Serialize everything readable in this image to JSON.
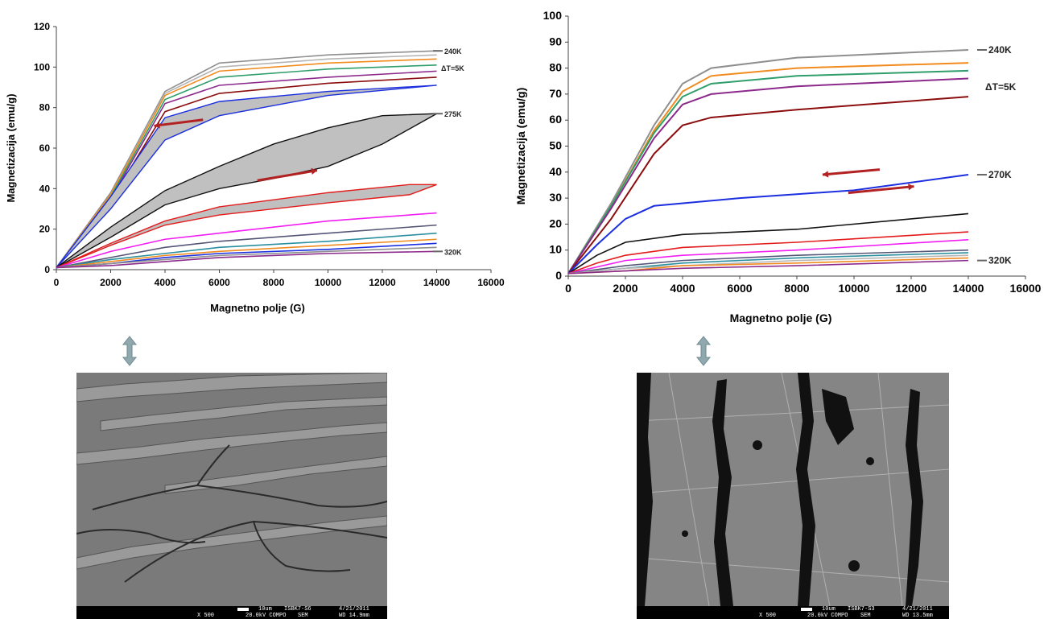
{
  "colors": {
    "gray": "#8f8f8f",
    "lightgray": "#b5b5b5",
    "orange": "#f28b1e",
    "green": "#2e9e6a",
    "purple": "#8c2a8c",
    "darkred": "#8b0d0d",
    "blue": "#1c2fe0",
    "black": "#111111",
    "red": "#e31b1b",
    "magenta": "#f21df2",
    "slate": "#555577",
    "teal": "#2a8f9f",
    "arrow": "#b22222",
    "dblarrow": "#8fa9ae"
  },
  "chart_data": [
    {
      "type": "line",
      "xlabel": "Magnetno polje (G)",
      "ylabel": "Magnetizacija (emu/g)",
      "xlim": [
        0,
        16000
      ],
      "ylim": [
        0,
        120
      ],
      "xticks": [
        "0",
        "2000",
        "4000",
        "6000",
        "8000",
        "10000",
        "12000",
        "14000",
        "16000"
      ],
      "yticks": [
        "0",
        "20",
        "40",
        "60",
        "80",
        "100",
        "120"
      ],
      "annotations": {
        "top": "240K",
        "dt": "ΔT=5K",
        "mid": "275K",
        "bottom": "320K"
      },
      "series": [
        {
          "color": "gray",
          "values": [
            [
              0,
              1
            ],
            [
              2000,
              38
            ],
            [
              4000,
              88
            ],
            [
              6000,
              102
            ],
            [
              10000,
              106
            ],
            [
              14000,
              108
            ]
          ]
        },
        {
          "color": "lightgray",
          "values": [
            [
              0,
              1
            ],
            [
              2000,
              37
            ],
            [
              4000,
              87
            ],
            [
              6000,
              100
            ],
            [
              10000,
              104
            ],
            [
              14000,
              106
            ]
          ]
        },
        {
          "color": "orange",
          "values": [
            [
              0,
              1
            ],
            [
              2000,
              37
            ],
            [
              4000,
              86
            ],
            [
              6000,
              98
            ],
            [
              10000,
              102
            ],
            [
              14000,
              104
            ]
          ]
        },
        {
          "color": "green",
          "values": [
            [
              0,
              1
            ],
            [
              2000,
              36
            ],
            [
              4000,
              84
            ],
            [
              6000,
              95
            ],
            [
              10000,
              99
            ],
            [
              14000,
              101
            ]
          ]
        },
        {
          "color": "purple",
          "values": [
            [
              0,
              1
            ],
            [
              2000,
              35
            ],
            [
              4000,
              82
            ],
            [
              6000,
              91
            ],
            [
              10000,
              95
            ],
            [
              14000,
              98
            ]
          ]
        },
        {
          "color": "darkred",
          "values": [
            [
              0,
              1
            ],
            [
              2000,
              34
            ],
            [
              4000,
              78
            ],
            [
              6000,
              87
            ],
            [
              10000,
              92
            ],
            [
              14000,
              95
            ]
          ]
        },
        {
          "color": "blue",
          "values": [
            [
              0,
              1
            ],
            [
              2000,
              30
            ],
            [
              4000,
              64
            ],
            [
              6000,
              76
            ],
            [
              10000,
              86
            ],
            [
              14000,
              91
            ]
          ],
          "return": [
            [
              14000,
              91
            ],
            [
              10000,
              88
            ],
            [
              6000,
              83
            ],
            [
              4000,
              75
            ],
            [
              2000,
              36
            ],
            [
              0,
              1
            ]
          ]
        },
        {
          "color": "black",
          "values": [
            [
              0,
              1
            ],
            [
              2000,
              16
            ],
            [
              4000,
              32
            ],
            [
              6000,
              40
            ],
            [
              8000,
              45
            ],
            [
              10000,
              51
            ],
            [
              12000,
              62
            ],
            [
              14000,
              77
            ]
          ],
          "return": [
            [
              14000,
              77
            ],
            [
              12000,
              76
            ],
            [
              10000,
              70
            ],
            [
              8000,
              62
            ],
            [
              6000,
              51
            ],
            [
              4000,
              39
            ],
            [
              2000,
              21
            ],
            [
              0,
              1
            ]
          ]
        },
        {
          "color": "red",
          "values": [
            [
              0,
              1
            ],
            [
              2000,
              12
            ],
            [
              4000,
              22
            ],
            [
              6000,
              27
            ],
            [
              10000,
              33
            ],
            [
              13000,
              37
            ],
            [
              14000,
              42
            ]
          ],
          "return": [
            [
              14000,
              42
            ],
            [
              13000,
              42
            ],
            [
              10000,
              38
            ],
            [
              6000,
              31
            ],
            [
              4000,
              24
            ],
            [
              2000,
              13
            ],
            [
              0,
              1
            ]
          ]
        },
        {
          "color": "magenta",
          "values": [
            [
              0,
              1
            ],
            [
              2000,
              9
            ],
            [
              4000,
              15
            ],
            [
              6000,
              18
            ],
            [
              10000,
              24
            ],
            [
              14000,
              28
            ]
          ]
        },
        {
          "color": "slate",
          "values": [
            [
              0,
              1
            ],
            [
              2000,
              6
            ],
            [
              4000,
              11
            ],
            [
              6000,
              14
            ],
            [
              10000,
              18
            ],
            [
              14000,
              22
            ]
          ]
        },
        {
          "color": "teal",
          "values": [
            [
              0,
              1
            ],
            [
              2000,
              5
            ],
            [
              4000,
              8
            ],
            [
              6000,
              11
            ],
            [
              10000,
              14
            ],
            [
              14000,
              18
            ]
          ]
        },
        {
          "color": "orange",
          "values": [
            [
              0,
              1
            ],
            [
              2000,
              4
            ],
            [
              4000,
              7
            ],
            [
              6000,
              9
            ],
            [
              10000,
              12
            ],
            [
              14000,
              15
            ]
          ]
        },
        {
          "color": "blue",
          "values": [
            [
              0,
              1
            ],
            [
              2000,
              3
            ],
            [
              4000,
              6
            ],
            [
              6000,
              8
            ],
            [
              10000,
              10
            ],
            [
              14000,
              13
            ]
          ]
        },
        {
          "color": "gray",
          "values": [
            [
              0,
              1
            ],
            [
              2000,
              3
            ],
            [
              4000,
              5
            ],
            [
              6000,
              7
            ],
            [
              10000,
              9
            ],
            [
              14000,
              11
            ]
          ]
        },
        {
          "color": "purple",
          "values": [
            [
              0,
              1
            ],
            [
              2000,
              2
            ],
            [
              4000,
              4
            ],
            [
              6000,
              6
            ],
            [
              10000,
              8
            ],
            [
              14000,
              9
            ]
          ]
        }
      ]
    },
    {
      "type": "line",
      "xlabel": "Magnetno polje (G)",
      "ylabel": "Magnetizacija (emu/g)",
      "xlim": [
        0,
        16000
      ],
      "ylim": [
        0,
        100
      ],
      "xticks": [
        "0",
        "2000",
        "4000",
        "6000",
        "8000",
        "10000",
        "12000",
        "14000",
        "16000"
      ],
      "yticks": [
        "0",
        "10",
        "20",
        "30",
        "40",
        "50",
        "60",
        "70",
        "80",
        "90",
        "100"
      ],
      "annotations": {
        "top": "240K",
        "dt": "ΔT=5K",
        "mid": "270K",
        "bottom": "320K"
      },
      "series": [
        {
          "color": "gray",
          "values": [
            [
              0,
              1
            ],
            [
              1500,
              28
            ],
            [
              3000,
              58
            ],
            [
              4000,
              74
            ],
            [
              5000,
              80
            ],
            [
              8000,
              84
            ],
            [
              14000,
              87
            ]
          ]
        },
        {
          "color": "orange",
          "values": [
            [
              0,
              1
            ],
            [
              1500,
              27
            ],
            [
              3000,
              56
            ],
            [
              4000,
              71
            ],
            [
              5000,
              77
            ],
            [
              8000,
              80
            ],
            [
              14000,
              82
            ]
          ]
        },
        {
          "color": "green",
          "values": [
            [
              0,
              1
            ],
            [
              1500,
              27
            ],
            [
              3000,
              55
            ],
            [
              4000,
              69
            ],
            [
              5000,
              74
            ],
            [
              8000,
              77
            ],
            [
              14000,
              79
            ]
          ]
        },
        {
          "color": "purple",
          "values": [
            [
              0,
              1
            ],
            [
              1500,
              26
            ],
            [
              3000,
              53
            ],
            [
              4000,
              66
            ],
            [
              5000,
              70
            ],
            [
              8000,
              73
            ],
            [
              14000,
              76
            ]
          ]
        },
        {
          "color": "darkred",
          "values": [
            [
              0,
              1
            ],
            [
              1500,
              22
            ],
            [
              3000,
              47
            ],
            [
              4000,
              58
            ],
            [
              5000,
              61
            ],
            [
              8000,
              64
            ],
            [
              14000,
              69
            ]
          ]
        },
        {
          "color": "blue",
          "values": [
            [
              0,
              1
            ],
            [
              1000,
              12
            ],
            [
              2000,
              22
            ],
            [
              3000,
              27
            ],
            [
              6000,
              30
            ],
            [
              10000,
              33
            ],
            [
              14000,
              39
            ]
          ]
        },
        {
          "color": "black",
          "values": [
            [
              0,
              1
            ],
            [
              1000,
              8
            ],
            [
              2000,
              13
            ],
            [
              4000,
              16
            ],
            [
              8000,
              18
            ],
            [
              14000,
              24
            ]
          ]
        },
        {
          "color": "red",
          "values": [
            [
              0,
              1
            ],
            [
              1000,
              5
            ],
            [
              2000,
              8
            ],
            [
              4000,
              11
            ],
            [
              8000,
              13
            ],
            [
              14000,
              17
            ]
          ]
        },
        {
          "color": "magenta",
          "values": [
            [
              0,
              1
            ],
            [
              2000,
              6
            ],
            [
              4000,
              8
            ],
            [
              8000,
              10
            ],
            [
              14000,
              14
            ]
          ]
        },
        {
          "color": "slate",
          "values": [
            [
              0,
              1
            ],
            [
              2000,
              4
            ],
            [
              4000,
              6
            ],
            [
              8000,
              8
            ],
            [
              14000,
              10
            ]
          ]
        },
        {
          "color": "teal",
          "values": [
            [
              0,
              1
            ],
            [
              2000,
              3
            ],
            [
              4000,
              5
            ],
            [
              8000,
              7
            ],
            [
              14000,
              9
            ]
          ]
        },
        {
          "color": "lightgray",
          "values": [
            [
              0,
              1
            ],
            [
              2000,
              3
            ],
            [
              4000,
              4
            ],
            [
              8000,
              6
            ],
            [
              14000,
              8
            ]
          ]
        },
        {
          "color": "orange",
          "values": [
            [
              0,
              1
            ],
            [
              2000,
              2
            ],
            [
              4000,
              4
            ],
            [
              8000,
              5
            ],
            [
              14000,
              7
            ]
          ]
        },
        {
          "color": "purple",
          "values": [
            [
              0,
              1
            ],
            [
              2000,
              2
            ],
            [
              4000,
              3
            ],
            [
              8000,
              4
            ],
            [
              14000,
              6
            ]
          ]
        }
      ]
    }
  ],
  "sem_left": {
    "scale_label": "10um",
    "sample_id": "ISBK7-S6",
    "date": "4/21/2011",
    "magnification": "X 500",
    "voltage": "20.0kV COMPO",
    "mode": "SEM",
    "wd": "WD 14.9mm"
  },
  "sem_right": {
    "scale_label": "10um",
    "sample_id": "ISBK7-S3",
    "date": "4/21/2011",
    "magnification": "X 500",
    "voltage": "20.0kV COMPO",
    "mode": "SEM",
    "wd": "WD 13.5mm"
  }
}
